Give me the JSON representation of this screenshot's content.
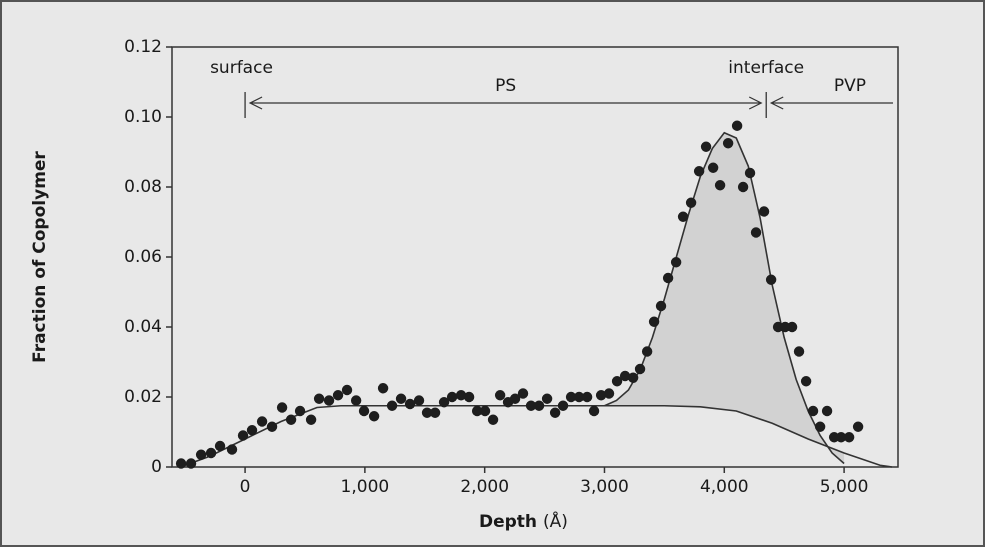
{
  "chart_data": {
    "type": "scatter",
    "ylabel": "Fraction of Copolymer",
    "xlabel": "Depth",
    "xunit": "(Å)",
    "xlim": [
      -610,
      5450
    ],
    "ylim": [
      0,
      0.12
    ],
    "xticks": [
      0,
      {
        "value": 1000,
        "label": "1,000"
      },
      {
        "value": 2000,
        "label": "2,000"
      },
      {
        "value": 3000,
        "label": "3,000"
      },
      {
        "value": 4000,
        "label": "4,000"
      },
      {
        "value": 5000,
        "label": "5,000"
      }
    ],
    "yticks": [
      0,
      0.02,
      0.04,
      0.06,
      0.08,
      {
        "value": 0.1,
        "label": "0.10"
      },
      0.12
    ],
    "boundaries": [
      {
        "label": "surface",
        "x": 0
      },
      {
        "label": "interface",
        "x": 4350
      }
    ],
    "regions": [
      {
        "label": "PS",
        "from": 0,
        "to": 4350
      },
      {
        "label": "PVP",
        "from": 4350,
        "to": 5450
      }
    ],
    "points": {
      "color": "#1e1e1e",
      "x": [
        -534,
        -451,
        -367,
        -284,
        -209,
        -109,
        -17,
        58,
        142,
        225,
        309,
        384,
        459,
        551,
        618,
        701,
        776,
        851,
        927,
        993,
        1077,
        1152,
        1227,
        1302,
        1377,
        1452,
        1519,
        1586,
        1661,
        1728,
        1803,
        1870,
        1937,
        2003,
        2070,
        2129,
        2195,
        2254,
        2320,
        2387,
        2454,
        2521,
        2588,
        2654,
        2721,
        2788,
        2855,
        2913,
        2972,
        3038,
        3105,
        3172,
        3239,
        3297,
        3356,
        3414,
        3472,
        3531,
        3598,
        3656,
        3723,
        3790,
        3848,
        3907,
        3965,
        4032,
        4107,
        4157,
        4215,
        4265,
        4332,
        4391,
        4449,
        4508,
        4566,
        4624,
        4683,
        4741,
        4800,
        4858,
        4917,
        4975,
        5042,
        5117
      ],
      "values": [
        0.001,
        0.001,
        0.0035,
        0.004,
        0.006,
        0.005,
        0.009,
        0.0105,
        0.013,
        0.0115,
        0.017,
        0.0135,
        0.016,
        0.0135,
        0.0195,
        0.019,
        0.0205,
        0.022,
        0.019,
        0.016,
        0.0145,
        0.0225,
        0.0175,
        0.0195,
        0.018,
        0.019,
        0.0155,
        0.0155,
        0.0185,
        0.02,
        0.0205,
        0.02,
        0.016,
        0.016,
        0.0135,
        0.0205,
        0.0185,
        0.0195,
        0.021,
        0.0175,
        0.0175,
        0.0195,
        0.0155,
        0.0175,
        0.02,
        0.02,
        0.02,
        0.016,
        0.0205,
        0.021,
        0.0245,
        0.026,
        0.0255,
        0.028,
        0.033,
        0.0415,
        0.046,
        0.054,
        0.0585,
        0.0715,
        0.0755,
        0.0845,
        0.0915,
        0.0855,
        0.0805,
        0.0925,
        0.0975,
        0.08,
        0.084,
        0.067,
        0.073,
        0.0535,
        0.04,
        0.04,
        0.04,
        0.033,
        0.0245,
        0.016,
        0.0115,
        0.016,
        0.0085,
        0.0085,
        0.0085,
        0.0115
      ]
    },
    "curves": [
      {
        "color": "#333333",
        "x": [
          -540,
          -300,
          0,
          300,
          600,
          800,
          3000,
          3500,
          3800,
          4100,
          4400,
          4700,
          5000,
          5300,
          5400
        ],
        "values": [
          0,
          0.003,
          0.008,
          0.013,
          0.017,
          0.0175,
          0.0175,
          0.0175,
          0.0172,
          0.016,
          0.0125,
          0.008,
          0.004,
          0.0005,
          0
        ]
      },
      {
        "color": "#333333",
        "fill": "#d2d2d2",
        "x": [
          3000,
          3100,
          3200,
          3300,
          3400,
          3500,
          3600,
          3700,
          3800,
          3900,
          4000,
          4100,
          4200,
          4300,
          4400,
          4500,
          4600,
          4700,
          4800,
          4900,
          5000
        ],
        "values": [
          0.0175,
          0.019,
          0.022,
          0.028,
          0.037,
          0.048,
          0.06,
          0.072,
          0.083,
          0.091,
          0.0955,
          0.094,
          0.086,
          0.071,
          0.052,
          0.037,
          0.025,
          0.016,
          0.009,
          0.004,
          0.001
        ]
      }
    ]
  }
}
